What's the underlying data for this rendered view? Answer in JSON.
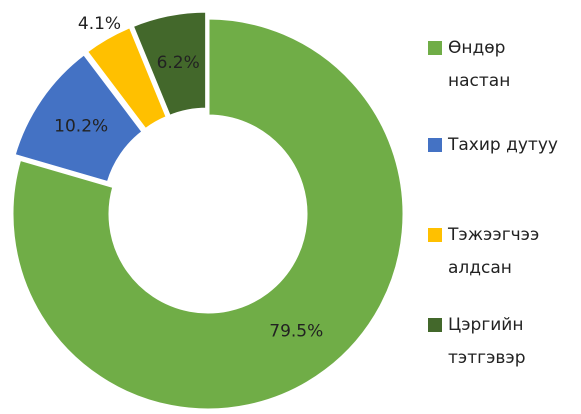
{
  "chart_data": {
    "type": "donut",
    "categories": [
      "Өндөр настан",
      "Тахир дутуу",
      "Тэжээгчээ алдсан",
      "Цэргийн тэтгэвэр"
    ],
    "values": [
      79.5,
      10.2,
      4.1,
      6.2
    ],
    "value_labels": [
      "79.5%",
      "10.2%",
      "4.1%",
      "6.2%"
    ],
    "colors": [
      "#70ad47",
      "#4472c4",
      "#ffc000",
      "#43682b"
    ],
    "legend": "right"
  }
}
